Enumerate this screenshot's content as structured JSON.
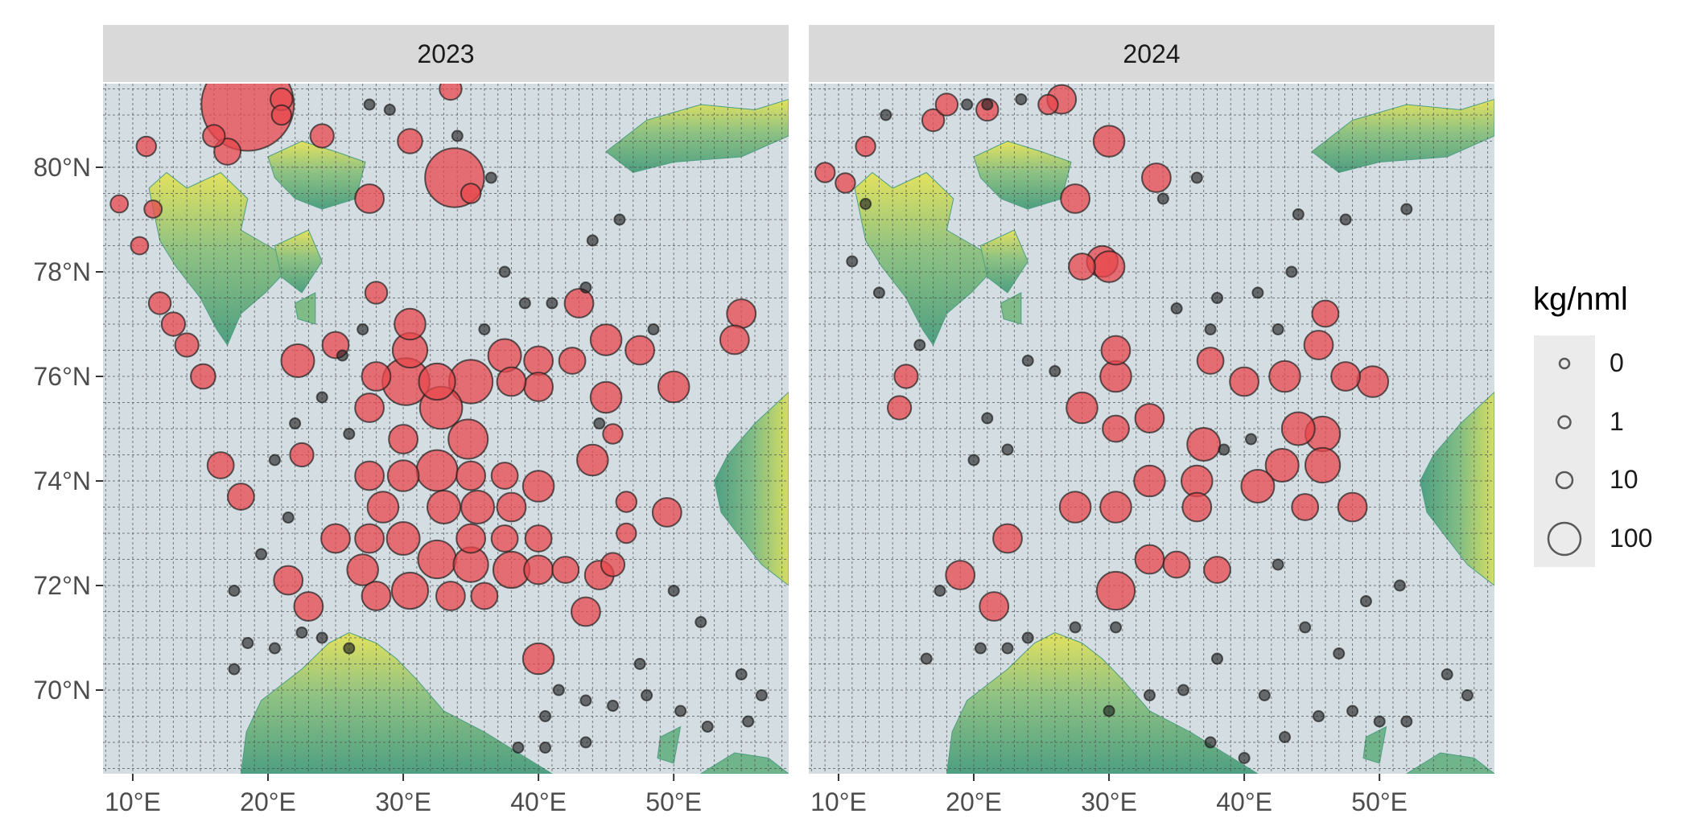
{
  "panels": [
    {
      "title": "2023"
    },
    {
      "title": "2024"
    }
  ],
  "axes": {
    "x_ticks": [
      "10°E",
      "20°E",
      "30°E",
      "40°E",
      "50°E"
    ],
    "y_ticks": [
      "70°N",
      "72°N",
      "74°N",
      "76°N",
      "78°N",
      "80°N"
    ],
    "x_values": [
      10,
      20,
      30,
      40,
      50
    ],
    "y_values": [
      70,
      72,
      74,
      76,
      78,
      80
    ],
    "xlim": [
      7.8,
      58.5
    ],
    "ylim": [
      68.4,
      81.6
    ]
  },
  "legend": {
    "title": "kg/nml",
    "entries": [
      {
        "label": "0",
        "value": 0
      },
      {
        "label": "1",
        "value": 1
      },
      {
        "label": "10",
        "value": 10
      },
      {
        "label": "100",
        "value": 100
      }
    ]
  },
  "colors": {
    "sea": "#d3dde2",
    "grid": "#4d4d4d",
    "strip": "#d9d9d9",
    "land_low": "#5fae8b",
    "land_high": "#e6e45a",
    "catch_fill": "#e8474c",
    "zero_fill": "#1a1a1a",
    "marker_stroke": "#1f1f1f"
  },
  "chart_data": {
    "type": "scatter",
    "description_fields": [
      "lon",
      "lat",
      "kg_per_nml"
    ],
    "series": [
      {
        "name": "2023",
        "points": [
          [
            18.5,
            81.2,
            400
          ],
          [
            33.8,
            79.8,
            140
          ],
          [
            30.2,
            75.9,
            80
          ],
          [
            32.8,
            75.4,
            60
          ],
          [
            34.8,
            74.8,
            50
          ],
          [
            32.5,
            74.2,
            55
          ],
          [
            35.0,
            75.9,
            65
          ],
          [
            32.5,
            75.9,
            40
          ],
          [
            32.5,
            72.5,
            45
          ],
          [
            30.5,
            71.9,
            40
          ],
          [
            22.2,
            76.3,
            30
          ],
          [
            55.0,
            77.2,
            20
          ],
          [
            54.5,
            76.7,
            20
          ],
          [
            44.0,
            74.4,
            25
          ],
          [
            15.2,
            76.0,
            12
          ],
          [
            33.5,
            81.5,
            8
          ],
          [
            9.0,
            79.3,
            3
          ],
          [
            10.5,
            78.5,
            3
          ],
          [
            12.0,
            77.4,
            8
          ],
          [
            14.0,
            76.6,
            10
          ],
          [
            16.0,
            80.6,
            8
          ],
          [
            17.0,
            80.3,
            15
          ],
          [
            21.0,
            81.3,
            8
          ],
          [
            24.0,
            80.6,
            10
          ],
          [
            27.5,
            79.4,
            20
          ],
          [
            30.5,
            80.5,
            12
          ],
          [
            28.0,
            77.6,
            8
          ],
          [
            30.5,
            77.0,
            25
          ],
          [
            30.5,
            76.5,
            35
          ],
          [
            28.0,
            76.0,
            20
          ],
          [
            30.0,
            74.8,
            20
          ],
          [
            27.5,
            74.1,
            20
          ],
          [
            30.0,
            74.1,
            25
          ],
          [
            35.0,
            74.1,
            20
          ],
          [
            37.5,
            74.1,
            15
          ],
          [
            40.0,
            73.9,
            25
          ],
          [
            28.5,
            73.5,
            25
          ],
          [
            33.0,
            73.5,
            30
          ],
          [
            35.5,
            73.5,
            30
          ],
          [
            38.0,
            73.5,
            20
          ],
          [
            25.0,
            72.9,
            20
          ],
          [
            27.5,
            72.9,
            20
          ],
          [
            30.0,
            72.9,
            30
          ],
          [
            35.0,
            72.9,
            20
          ],
          [
            37.5,
            72.9,
            15
          ],
          [
            40.0,
            72.9,
            15
          ],
          [
            27.0,
            72.3,
            25
          ],
          [
            35.0,
            72.4,
            35
          ],
          [
            38.0,
            72.3,
            40
          ],
          [
            40.0,
            72.3,
            20
          ],
          [
            21.5,
            72.1,
            20
          ],
          [
            23.0,
            71.6,
            20
          ],
          [
            28.0,
            71.8,
            20
          ],
          [
            33.5,
            71.8,
            20
          ],
          [
            36.0,
            71.8,
            15
          ],
          [
            40.0,
            70.6,
            25
          ],
          [
            37.5,
            76.4,
            30
          ],
          [
            40.0,
            76.3,
            20
          ],
          [
            42.5,
            76.3,
            15
          ],
          [
            45.0,
            76.7,
            25
          ],
          [
            47.5,
            76.5,
            20
          ],
          [
            40.0,
            75.8,
            20
          ],
          [
            45.0,
            75.6,
            25
          ],
          [
            50.0,
            75.8,
            25
          ],
          [
            38.0,
            75.9,
            20
          ],
          [
            43.0,
            77.4,
            20
          ],
          [
            49.5,
            73.4,
            20
          ],
          [
            43.5,
            71.5,
            20
          ],
          [
            44.5,
            72.2,
            20
          ],
          [
            16.5,
            74.3,
            15
          ],
          [
            18.0,
            73.7,
            15
          ],
          [
            27.5,
            75.4,
            20
          ],
          [
            25.0,
            76.6,
            15
          ],
          [
            22.5,
            74.5,
            10
          ],
          [
            42.0,
            72.3,
            15
          ],
          [
            45.5,
            74.9,
            5
          ],
          [
            46.5,
            73.6,
            6
          ],
          [
            46.5,
            73.0,
            5
          ],
          [
            45.5,
            72.4,
            10
          ],
          [
            21.0,
            81.0,
            5
          ],
          [
            35.0,
            79.5,
            5
          ],
          [
            11.0,
            80.4,
            5
          ],
          [
            13.0,
            77.0,
            10
          ],
          [
            11.5,
            79.2,
            3
          ],
          [
            20.5,
            70.8,
            0
          ],
          [
            24.0,
            71.0,
            0
          ],
          [
            26.0,
            70.8,
            0
          ],
          [
            22.5,
            71.1,
            0
          ],
          [
            27.5,
            81.2,
            0
          ],
          [
            29.0,
            81.1,
            0
          ],
          [
            34.0,
            80.6,
            0
          ],
          [
            36.5,
            79.8,
            0
          ],
          [
            44.0,
            78.6,
            0
          ],
          [
            46.0,
            79.0,
            0
          ],
          [
            48.5,
            76.9,
            0
          ],
          [
            47.5,
            70.5,
            0
          ],
          [
            50.0,
            71.9,
            0
          ],
          [
            52.0,
            71.3,
            0
          ],
          [
            55.0,
            70.3,
            0
          ],
          [
            56.5,
            69.9,
            0
          ],
          [
            48.0,
            69.9,
            0
          ],
          [
            50.5,
            69.6,
            0
          ],
          [
            52.5,
            69.3,
            0
          ],
          [
            55.5,
            69.4,
            0
          ],
          [
            40.5,
            69.5,
            0
          ],
          [
            41.5,
            70.0,
            0
          ],
          [
            43.5,
            69.8,
            0
          ],
          [
            45.5,
            69.7,
            0
          ],
          [
            38.5,
            68.9,
            0
          ],
          [
            40.5,
            68.9,
            0
          ],
          [
            43.5,
            69.0,
            0
          ],
          [
            36.0,
            76.9,
            0
          ],
          [
            39.0,
            77.4,
            0
          ],
          [
            27.0,
            76.9,
            0
          ],
          [
            25.5,
            76.4,
            0
          ],
          [
            24.0,
            75.6,
            0
          ],
          [
            22.0,
            75.1,
            0
          ],
          [
            26.0,
            74.9,
            0
          ],
          [
            20.5,
            74.4,
            0
          ],
          [
            21.5,
            73.3,
            0
          ],
          [
            19.5,
            72.6,
            0
          ],
          [
            17.5,
            71.9,
            0
          ],
          [
            18.5,
            70.9,
            0
          ],
          [
            17.5,
            70.4,
            0
          ],
          [
            37.5,
            78.0,
            0
          ],
          [
            41.0,
            77.4,
            0
          ],
          [
            43.5,
            77.7,
            0
          ],
          [
            44.5,
            75.1,
            0
          ]
        ]
      },
      {
        "name": "2024",
        "points": [
          [
            45.8,
            74.9,
            35
          ],
          [
            45.8,
            74.3,
            35
          ],
          [
            44.0,
            75.0,
            30
          ],
          [
            42.8,
            74.3,
            30
          ],
          [
            41.0,
            73.9,
            30
          ],
          [
            37.0,
            74.7,
            30
          ],
          [
            36.5,
            74.0,
            25
          ],
          [
            36.5,
            73.5,
            20
          ],
          [
            30.5,
            71.9,
            45
          ],
          [
            30.5,
            73.5,
            25
          ],
          [
            27.5,
            73.5,
            25
          ],
          [
            33.0,
            74.0,
            25
          ],
          [
            30.5,
            76.0,
            25
          ],
          [
            30.5,
            76.5,
            20
          ],
          [
            28.0,
            75.4,
            25
          ],
          [
            30.5,
            75.0,
            15
          ],
          [
            33.5,
            79.8,
            20
          ],
          [
            30.0,
            80.5,
            25
          ],
          [
            26.5,
            81.3,
            20
          ],
          [
            29.5,
            78.2,
            25
          ],
          [
            28.0,
            78.1,
            15
          ],
          [
            30.0,
            78.1,
            25
          ],
          [
            27.5,
            79.4,
            20
          ],
          [
            33.0,
            75.2,
            20
          ],
          [
            49.5,
            75.9,
            25
          ],
          [
            47.5,
            76.0,
            20
          ],
          [
            45.5,
            76.6,
            20
          ],
          [
            46.0,
            77.2,
            15
          ],
          [
            43.0,
            76.0,
            25
          ],
          [
            40.0,
            75.9,
            20
          ],
          [
            37.5,
            76.3,
            15
          ],
          [
            48.0,
            73.5,
            20
          ],
          [
            44.5,
            73.5,
            15
          ],
          [
            22.5,
            72.9,
            20
          ],
          [
            19.0,
            72.2,
            20
          ],
          [
            21.5,
            71.6,
            20
          ],
          [
            33.0,
            72.5,
            20
          ],
          [
            35.0,
            72.4,
            15
          ],
          [
            38.0,
            72.3,
            15
          ],
          [
            15.0,
            76.0,
            10
          ],
          [
            14.5,
            75.4,
            10
          ],
          [
            17.0,
            80.9,
            8
          ],
          [
            18.0,
            81.2,
            8
          ],
          [
            21.0,
            81.1,
            8
          ],
          [
            25.5,
            81.2,
            5
          ],
          [
            12.0,
            80.4,
            5
          ],
          [
            9.0,
            79.9,
            5
          ],
          [
            10.5,
            79.7,
            5
          ],
          [
            20.5,
            70.8,
            0
          ],
          [
            24.0,
            71.0,
            0
          ],
          [
            22.5,
            70.8,
            0
          ],
          [
            21.0,
            81.2,
            0
          ],
          [
            23.5,
            81.3,
            0
          ],
          [
            19.5,
            81.2,
            0
          ],
          [
            13.5,
            81.0,
            0
          ],
          [
            34.0,
            79.4,
            0
          ],
          [
            36.5,
            79.8,
            0
          ],
          [
            44.0,
            79.1,
            0
          ],
          [
            47.5,
            79.0,
            0
          ],
          [
            52.0,
            79.2,
            0
          ],
          [
            47.0,
            70.7,
            0
          ],
          [
            49.0,
            71.7,
            0
          ],
          [
            51.5,
            72.0,
            0
          ],
          [
            55.0,
            70.3,
            0
          ],
          [
            56.5,
            69.9,
            0
          ],
          [
            48.0,
            69.6,
            0
          ],
          [
            50.0,
            69.4,
            0
          ],
          [
            52.0,
            69.4,
            0
          ],
          [
            41.5,
            69.9,
            0
          ],
          [
            43.0,
            69.1,
            0
          ],
          [
            45.5,
            69.5,
            0
          ],
          [
            40.0,
            68.7,
            0
          ],
          [
            37.5,
            69.0,
            0
          ],
          [
            24.0,
            76.3,
            0
          ],
          [
            26.0,
            76.1,
            0
          ],
          [
            21.0,
            75.2,
            0
          ],
          [
            22.5,
            74.6,
            0
          ],
          [
            20.0,
            74.4,
            0
          ],
          [
            17.5,
            71.9,
            0
          ],
          [
            16.5,
            70.6,
            0
          ],
          [
            38.0,
            77.5,
            0
          ],
          [
            41.0,
            77.6,
            0
          ],
          [
            43.5,
            78.0,
            0
          ],
          [
            35.0,
            77.3,
            0
          ],
          [
            40.5,
            74.8,
            0
          ],
          [
            38.5,
            74.6,
            0
          ],
          [
            42.5,
            72.4,
            0
          ],
          [
            44.5,
            71.2,
            0
          ],
          [
            38.0,
            70.6,
            0
          ],
          [
            27.5,
            71.2,
            0
          ],
          [
            30.5,
            71.2,
            0
          ],
          [
            30.0,
            69.6,
            0
          ],
          [
            33.0,
            69.9,
            0
          ],
          [
            35.5,
            70.0,
            0
          ],
          [
            37.5,
            76.9,
            0
          ],
          [
            42.5,
            76.9,
            0
          ],
          [
            13.0,
            77.6,
            0
          ],
          [
            11.0,
            78.2,
            0
          ],
          [
            12.0,
            79.3,
            0
          ],
          [
            16.0,
            76.6,
            0
          ]
        ]
      }
    ]
  }
}
